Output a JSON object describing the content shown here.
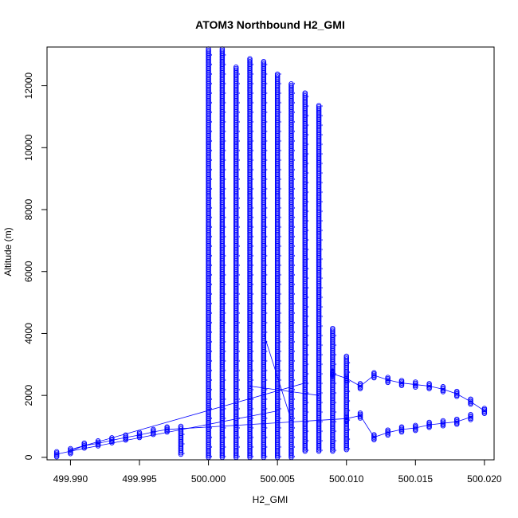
{
  "chart_data": {
    "type": "scatter",
    "title": "ATOM3 Northbound H2_GMI",
    "xlabel": "H2_GMI",
    "ylabel": "Altitude (m)",
    "xlim": [
      499.9883,
      500.0207
    ],
    "ylim": [
      -80,
      13250
    ],
    "x_ticks": [
      499.99,
      499.995,
      500.0,
      500.005,
      500.01,
      500.015,
      500.02
    ],
    "x_tick_labels": [
      "499.990",
      "499.995",
      "500.000",
      "500.005",
      "500.010",
      "500.015",
      "500.020"
    ],
    "y_ticks": [
      0,
      2000,
      4000,
      6000,
      8000,
      10000,
      12000
    ],
    "y_tick_labels": [
      "0",
      "2000",
      "4000",
      "6000",
      "8000",
      "10000",
      "12000"
    ],
    "grid": false,
    "legend": "none",
    "marker": "open-circle",
    "color": "#0000ff",
    "columns": [
      {
        "x": 500.0,
        "y_min": 0,
        "y_max": 13200
      },
      {
        "x": 500.001,
        "y_min": 0,
        "y_max": 13200
      },
      {
        "x": 500.002,
        "y_min": 0,
        "y_max": 12600
      },
      {
        "x": 500.003,
        "y_min": 0,
        "y_max": 12900
      },
      {
        "x": 500.004,
        "y_min": 0,
        "y_max": 12800
      },
      {
        "x": 500.005,
        "y_min": 0,
        "y_max": 12400
      },
      {
        "x": 500.006,
        "y_min": 0,
        "y_max": 12100
      },
      {
        "x": 500.007,
        "y_min": 200,
        "y_max": 11800
      },
      {
        "x": 500.008,
        "y_min": 200,
        "y_max": 11400
      },
      {
        "x": 499.998,
        "y_min": 100,
        "y_max": 1000
      },
      {
        "x": 500.009,
        "y_min": 200,
        "y_max": 4200
      },
      {
        "x": 500.01,
        "y_min": 250,
        "y_max": 3300
      }
    ],
    "lower_branch": [
      {
        "x": 499.989,
        "y": 100
      },
      {
        "x": 499.99,
        "y": 200
      },
      {
        "x": 499.991,
        "y": 380
      },
      {
        "x": 499.992,
        "y": 450
      },
      {
        "x": 499.993,
        "y": 550
      },
      {
        "x": 499.994,
        "y": 640
      },
      {
        "x": 499.995,
        "y": 720
      },
      {
        "x": 499.996,
        "y": 820
      },
      {
        "x": 499.997,
        "y": 900
      },
      {
        "x": 500.01,
        "y": 1250
      },
      {
        "x": 500.011,
        "y": 1350
      },
      {
        "x": 500.012,
        "y": 650
      },
      {
        "x": 500.013,
        "y": 800
      },
      {
        "x": 500.014,
        "y": 900
      },
      {
        "x": 500.015,
        "y": 950
      },
      {
        "x": 500.016,
        "y": 1050
      },
      {
        "x": 500.017,
        "y": 1100
      },
      {
        "x": 500.018,
        "y": 1150
      },
      {
        "x": 500.019,
        "y": 1300
      }
    ],
    "upper_branch": [
      {
        "x": 500.009,
        "y": 2700
      },
      {
        "x": 500.01,
        "y": 2550
      },
      {
        "x": 500.011,
        "y": 2300
      },
      {
        "x": 500.012,
        "y": 2650
      },
      {
        "x": 500.013,
        "y": 2500
      },
      {
        "x": 500.014,
        "y": 2400
      },
      {
        "x": 500.015,
        "y": 2350
      },
      {
        "x": 500.016,
        "y": 2300
      },
      {
        "x": 500.017,
        "y": 2200
      },
      {
        "x": 500.018,
        "y": 2050
      },
      {
        "x": 500.019,
        "y": 1800
      },
      {
        "x": 500.02,
        "y": 1500
      }
    ]
  }
}
